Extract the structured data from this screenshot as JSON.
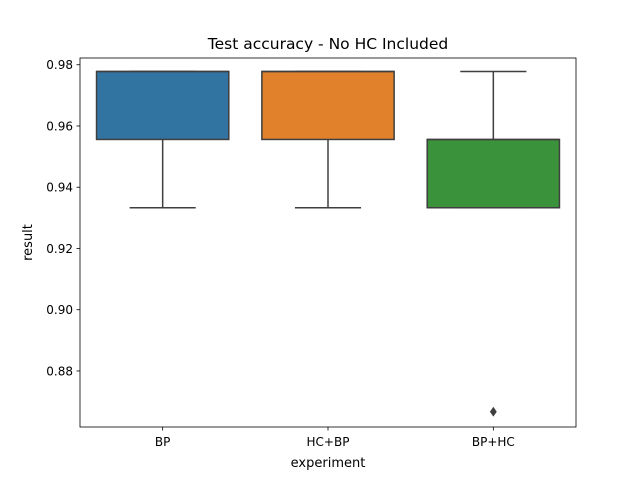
{
  "chart_data": {
    "type": "box",
    "title": "Test accuracy - No HC Included",
    "xlabel": "experiment",
    "ylabel": "result",
    "ylim": [
      0.8617,
      0.9822
    ],
    "yticks": [
      0.88,
      0.9,
      0.92,
      0.94,
      0.96,
      0.98
    ],
    "ytick_labels": [
      "0.88",
      "0.90",
      "0.92",
      "0.94",
      "0.96",
      "0.98"
    ],
    "grid": false,
    "categories": [
      "BP",
      "HC+BP",
      "BP+HC"
    ],
    "boxes": [
      {
        "category": "BP",
        "whisker_low": 0.9333,
        "q1": 0.9556,
        "median": 0.9778,
        "q3": 0.9778,
        "whisker_high": 0.9778,
        "outliers": [],
        "color": "#3274a1"
      },
      {
        "category": "HC+BP",
        "whisker_low": 0.9333,
        "q1": 0.9556,
        "median": 0.9778,
        "q3": 0.9778,
        "whisker_high": 0.9778,
        "outliers": [],
        "color": "#e1812c"
      },
      {
        "category": "BP+HC",
        "whisker_low": 0.9333,
        "q1": 0.9333,
        "median": 0.9556,
        "q3": 0.9556,
        "whisker_high": 0.9778,
        "outliers": [
          0.8667
        ],
        "color": "#3a923a"
      }
    ]
  }
}
